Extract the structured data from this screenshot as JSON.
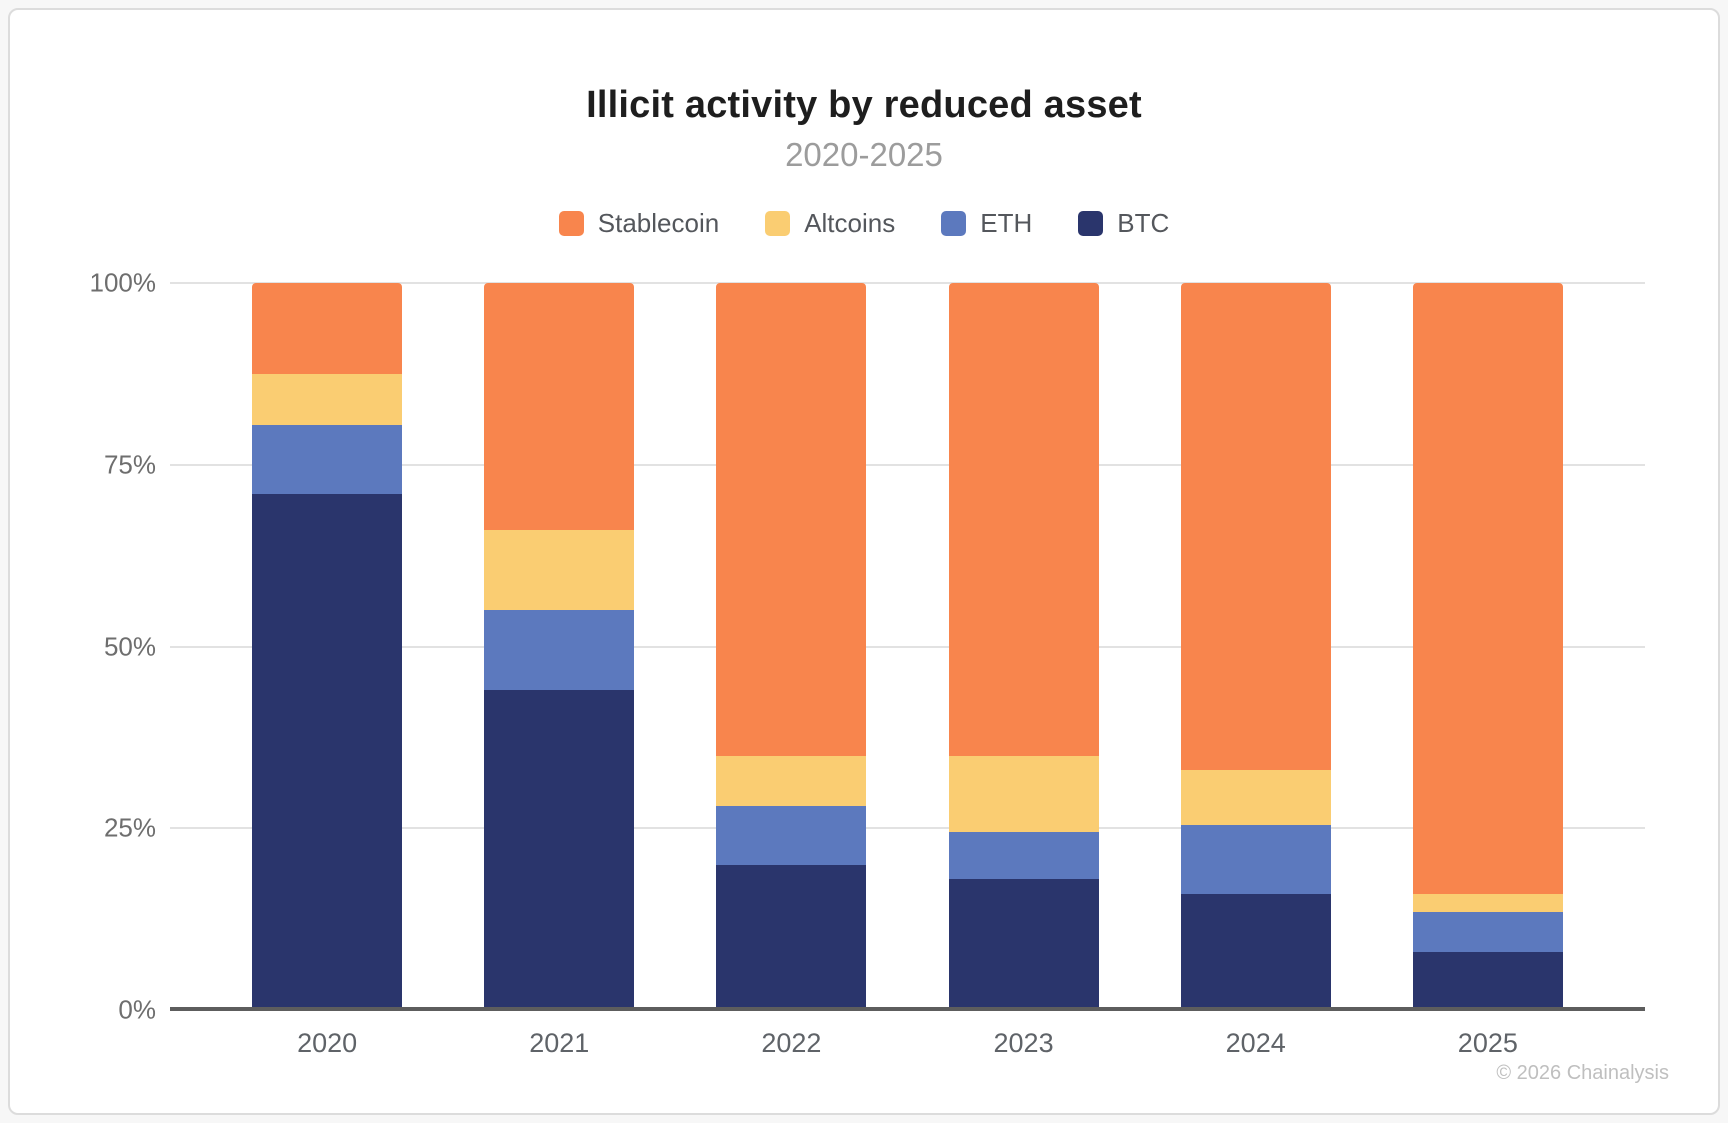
{
  "page": {
    "footer": "© 2026 Chainalysis"
  },
  "chart_data": {
    "type": "bar",
    "variant": "stacked-100-percent",
    "title": "Illicit activity by reduced asset",
    "subtitle": "2020-2025",
    "categories": [
      "2020",
      "2021",
      "2022",
      "2023",
      "2024",
      "2025"
    ],
    "series": [
      {
        "name": "BTC",
        "color": "#2A356C",
        "values": [
          71,
          44,
          20,
          18,
          16,
          8
        ]
      },
      {
        "name": "ETH",
        "color": "#5C79BE",
        "values": [
          9.5,
          11,
          8,
          6.5,
          9.5,
          5.5
        ]
      },
      {
        "name": "Altcoins",
        "color": "#FACD72",
        "values": [
          7,
          11,
          7,
          10.5,
          7.5,
          2.5
        ]
      },
      {
        "name": "Stablecoin",
        "color": "#F8854D",
        "values": [
          12.5,
          34,
          65,
          65,
          67,
          84
        ]
      }
    ],
    "legend": {
      "position": "top",
      "order": [
        "Stablecoin",
        "Altcoins",
        "ETH",
        "BTC"
      ]
    },
    "y_axis": {
      "min": 0,
      "max": 100,
      "ticks": [
        {
          "label": "0%",
          "value": 0
        },
        {
          "label": "25%",
          "value": 25
        },
        {
          "label": "50%",
          "value": 50
        },
        {
          "label": "75%",
          "value": 75
        },
        {
          "label": "100%",
          "value": 100
        }
      ]
    },
    "grid": true,
    "colors": {
      "gridline": "#e2e2e2",
      "axis_line": "#5d5d5d",
      "title_text": "#1e1e1e",
      "subtitle_text": "#9c9c9c",
      "tick_text": "#6e6e6e"
    }
  }
}
